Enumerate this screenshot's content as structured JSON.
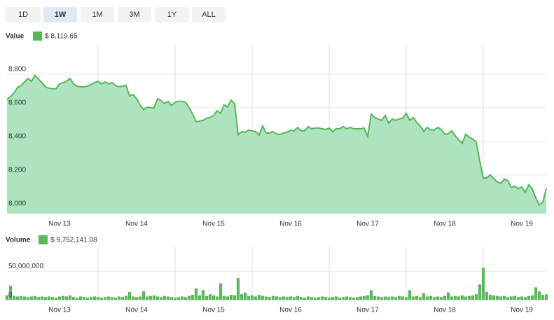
{
  "buttons": [
    "1D",
    "1W",
    "1M",
    "3M",
    "1Y",
    "ALL"
  ],
  "selected_button": 1,
  "chart_data": [
    {
      "type": "area",
      "title": "Value",
      "series": [
        {
          "name": "$ 8,119.65",
          "color": "#55b75a",
          "fill_color": "#aee3bf",
          "values": [
            8650,
            8667,
            8688,
            8721,
            8733,
            8754,
            8775,
            8758,
            8792,
            8771,
            8750,
            8725,
            8717,
            8713,
            8713,
            8742,
            8750,
            8758,
            8775,
            8742,
            8729,
            8725,
            8725,
            8729,
            8738,
            8750,
            8758,
            8742,
            8754,
            8742,
            8750,
            8733,
            8725,
            8729,
            8733,
            8671,
            8679,
            8654,
            8617,
            8588,
            8604,
            8600,
            8600,
            8654,
            8642,
            8625,
            8638,
            8613,
            8633,
            8638,
            8638,
            8633,
            8600,
            8563,
            8517,
            8521,
            8525,
            8538,
            8542,
            8554,
            8583,
            8567,
            8617,
            8604,
            8646,
            8625,
            8438,
            8458,
            8454,
            8467,
            8463,
            8458,
            8438,
            8492,
            8450,
            8450,
            8458,
            8442,
            8442,
            8450,
            8454,
            8467,
            8463,
            8483,
            8463,
            8463,
            8488,
            8475,
            8479,
            8479,
            8475,
            8471,
            8479,
            8458,
            8475,
            8475,
            8488,
            8475,
            8483,
            8475,
            8475,
            8475,
            8479,
            8429,
            8563,
            8542,
            8533,
            8525,
            8554,
            8508,
            8533,
            8525,
            8533,
            8538,
            8567,
            8525,
            8542,
            8513,
            8492,
            8458,
            8483,
            8467,
            8467,
            8483,
            8471,
            8442,
            8446,
            8463,
            8433,
            8408,
            8388,
            8442,
            8425,
            8413,
            8396,
            8283,
            8179,
            8183,
            8200,
            8179,
            8158,
            8150,
            8175,
            8167,
            8125,
            8133,
            8117,
            8129,
            8096,
            8142,
            8117,
            8063,
            8021,
            8038,
            8119.65
          ]
        }
      ],
      "xlim": [
        0,
        154
      ],
      "xticks": [
        {
          "value": 15,
          "label": "Nov 13"
        },
        {
          "value": 37,
          "label": "Nov 14"
        },
        {
          "value": 59,
          "label": "Nov 15"
        },
        {
          "value": 81,
          "label": "Nov 16"
        },
        {
          "value": 103,
          "label": "Nov 17"
        },
        {
          "value": 125,
          "label": "Nov 18"
        },
        {
          "value": 147,
          "label": "Nov 19"
        }
      ],
      "xgrid": [
        26,
        48,
        70,
        92,
        114,
        136
      ],
      "ylim": [
        7970,
        8975
      ],
      "yticks": [
        {
          "value": 8000,
          "label": "8,000"
        },
        {
          "value": 8200,
          "label": "8,200"
        },
        {
          "value": 8400,
          "label": "8,400"
        },
        {
          "value": 8600,
          "label": "8,600"
        },
        {
          "value": 8800,
          "label": "8,800"
        }
      ],
      "grid": true
    },
    {
      "type": "bar",
      "title": "Volume",
      "series": [
        {
          "name": "$ 9,752,141.08",
          "color": "#5cb85c",
          "values": [
            8000000,
            25000000,
            7000000,
            6000000,
            7000000,
            6000000,
            5000000,
            6000000,
            7000000,
            5000000,
            6000000,
            5000000,
            6000000,
            5000000,
            4000000,
            6000000,
            7000000,
            6000000,
            8000000,
            5000000,
            4000000,
            6000000,
            5000000,
            4000000,
            5000000,
            6000000,
            5000000,
            4000000,
            5000000,
            6000000,
            5000000,
            4000000,
            6000000,
            5000000,
            7000000,
            14000000,
            6000000,
            5000000,
            6000000,
            15000000,
            6000000,
            7000000,
            8000000,
            6000000,
            5000000,
            7000000,
            6000000,
            5000000,
            4000000,
            5000000,
            6000000,
            5000000,
            7000000,
            9000000,
            20000000,
            8000000,
            17000000,
            7000000,
            10000000,
            8000000,
            6000000,
            29000000,
            7000000,
            6000000,
            9000000,
            8000000,
            38000000,
            10000000,
            13000000,
            7000000,
            8000000,
            6000000,
            9000000,
            7000000,
            6000000,
            5000000,
            7000000,
            6000000,
            5000000,
            6000000,
            5000000,
            6000000,
            5000000,
            7000000,
            5000000,
            4000000,
            6000000,
            5000000,
            4000000,
            5000000,
            6000000,
            5000000,
            4000000,
            5000000,
            6000000,
            4000000,
            5000000,
            6000000,
            5000000,
            4000000,
            5000000,
            6000000,
            7000000,
            8000000,
            17000000,
            7000000,
            6000000,
            5000000,
            6000000,
            5000000,
            6000000,
            5000000,
            7000000,
            6000000,
            5000000,
            17000000,
            6000000,
            7000000,
            5000000,
            12000000,
            6000000,
            7000000,
            5000000,
            6000000,
            5000000,
            7000000,
            13000000,
            6000000,
            7000000,
            6000000,
            8000000,
            6000000,
            7000000,
            8000000,
            10000000,
            27000000,
            56000000,
            14000000,
            9000000,
            8000000,
            7000000,
            6000000,
            7000000,
            5000000,
            6000000,
            7000000,
            5000000,
            6000000,
            5000000,
            7000000,
            8000000,
            22000000,
            15000000,
            9000000,
            9752141.08
          ]
        }
      ],
      "xlim": [
        0,
        154
      ],
      "xticks": [
        {
          "value": 15,
          "label": "Nov 13"
        },
        {
          "value": 37,
          "label": "Nov 14"
        },
        {
          "value": 59,
          "label": "Nov 15"
        },
        {
          "value": 81,
          "label": "Nov 16"
        },
        {
          "value": 103,
          "label": "Nov 17"
        },
        {
          "value": 125,
          "label": "Nov 18"
        },
        {
          "value": 147,
          "label": "Nov 19"
        }
      ],
      "xgrid": [
        26,
        48,
        70,
        92,
        114,
        136
      ],
      "ylim": [
        -2000000,
        92000000
      ],
      "yticks": [
        0,
        {
          "value": 50000000,
          "label": "50,000,000"
        }
      ],
      "grid": true
    }
  ]
}
